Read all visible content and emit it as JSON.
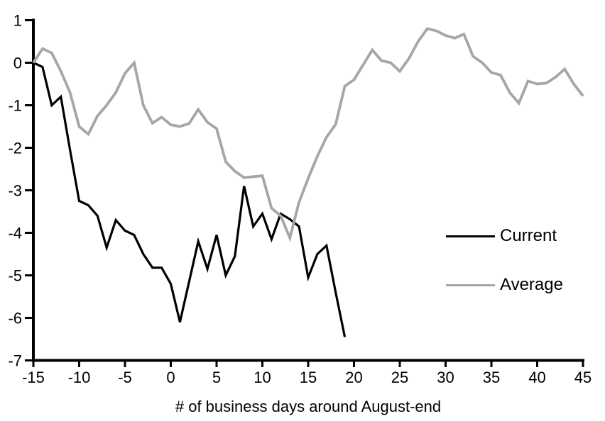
{
  "chart_data": {
    "type": "line",
    "title": "",
    "xlabel": "# of business days around August-end",
    "ylabel": "",
    "xlim": [
      -15,
      45
    ],
    "ylim": [
      -7,
      1
    ],
    "x_ticks": [
      -15,
      -10,
      -5,
      0,
      5,
      10,
      15,
      20,
      25,
      30,
      35,
      40,
      45
    ],
    "y_ticks": [
      1,
      0,
      -1,
      -2,
      -3,
      -4,
      -5,
      -6,
      -7
    ],
    "grid": false,
    "legend": {
      "position": "middle-right",
      "entries": [
        "Current",
        "Average"
      ]
    },
    "series": [
      {
        "name": "Current",
        "color": "#000000",
        "x_start": -15,
        "x_step": 1,
        "values": [
          0,
          -0.1,
          -1.0,
          -0.8,
          -2.05,
          -3.25,
          -3.35,
          -3.6,
          -4.35,
          -3.7,
          -3.95,
          -4.05,
          -4.5,
          -4.82,
          -4.82,
          -5.2,
          -6.1,
          -5.15,
          -4.2,
          -4.85,
          -4.05,
          -5.0,
          -4.55,
          -2.9,
          -3.85,
          -3.55,
          -4.15,
          -3.55,
          -3.68,
          -3.85,
          -5.05,
          -4.5,
          -4.3,
          -5.4,
          -6.45
        ]
      },
      {
        "name": "Average",
        "color": "#a6a6a6",
        "x_start": -15,
        "x_step": 1,
        "values": [
          0,
          0.33,
          0.23,
          -0.2,
          -0.7,
          -1.5,
          -1.68,
          -1.25,
          -1.0,
          -0.7,
          -0.25,
          0.0,
          -1.0,
          -1.42,
          -1.28,
          -1.46,
          -1.5,
          -1.43,
          -1.1,
          -1.4,
          -1.55,
          -2.33,
          -2.55,
          -2.7,
          -2.68,
          -2.66,
          -3.42,
          -3.6,
          -4.12,
          -3.28,
          -2.72,
          -2.2,
          -1.75,
          -1.45,
          -0.55,
          -0.4,
          -0.05,
          0.3,
          0.05,
          0.0,
          -0.2,
          0.1,
          0.5,
          0.8,
          0.75,
          0.64,
          0.58,
          0.67,
          0.15,
          0.0,
          -0.23,
          -0.29,
          -0.7,
          -0.95,
          -0.43,
          -0.5,
          -0.48,
          -0.34,
          -0.15,
          -0.5,
          -0.78
        ]
      }
    ]
  }
}
